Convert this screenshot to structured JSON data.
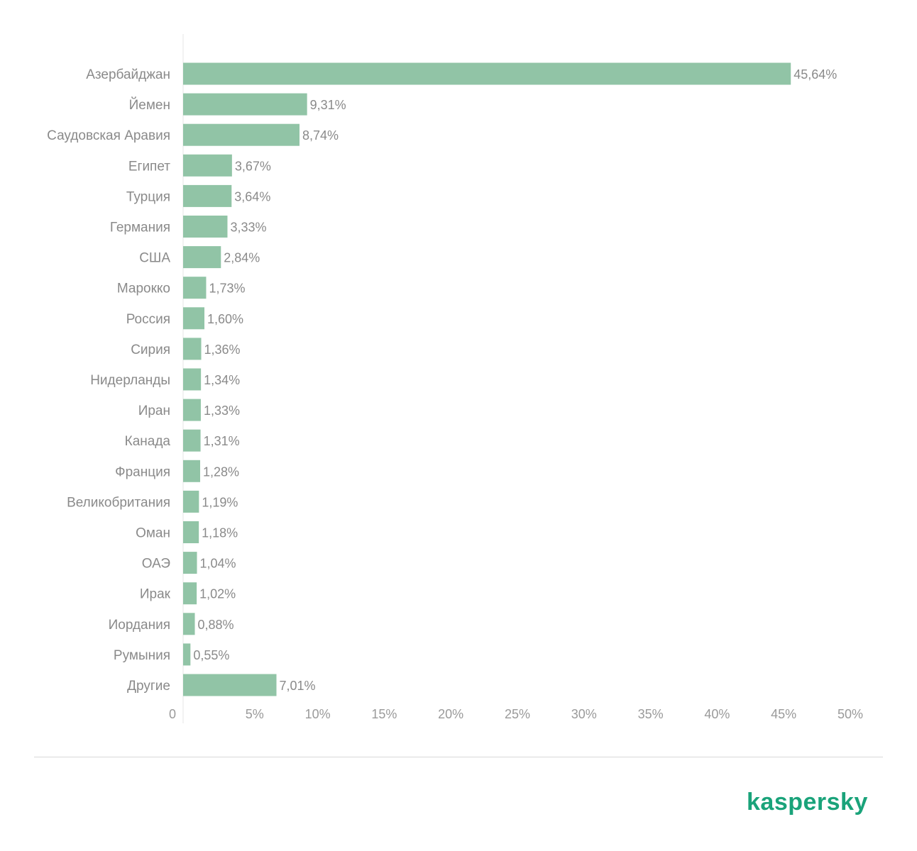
{
  "chart_data": {
    "type": "bar",
    "orientation": "horizontal",
    "categories": [
      "Азербайджан",
      "Йемен",
      "Саудовская Аравия",
      "Египет",
      "Турция",
      "Германия",
      "США",
      "Марокко",
      "Россия",
      "Сирия",
      "Нидерланды",
      "Иран",
      "Канада",
      "Франция",
      "Великобритания",
      "Оман",
      "ОАЭ",
      "Ирак",
      "Иордания",
      "Румыния",
      "Другие"
    ],
    "values": [
      45.64,
      9.31,
      8.74,
      3.67,
      3.64,
      3.33,
      2.84,
      1.73,
      1.6,
      1.36,
      1.34,
      1.33,
      1.31,
      1.28,
      1.19,
      1.18,
      1.04,
      1.02,
      0.88,
      0.55,
      7.01
    ],
    "value_labels": [
      "45,64%",
      "9,31%",
      "8,74%",
      "3,67%",
      "3,64%",
      "3,33%",
      "2,84%",
      "1,73%",
      "1,60%",
      "1,36%",
      "1,34%",
      "1,33%",
      "1,31%",
      "1,28%",
      "1,19%",
      "1,18%",
      "1,04%",
      "1,02%",
      "0,88%",
      "0,55%",
      "7,01%"
    ],
    "xlim": [
      0,
      50
    ],
    "x_ticks": [
      "0",
      "5%",
      "10%",
      "15%",
      "20%",
      "25%",
      "30%",
      "35%",
      "40%",
      "45%",
      "50%"
    ],
    "bar_color": "#91c4a6",
    "grid": false,
    "legend": "none"
  },
  "brand": {
    "logo_text": "kaspersky",
    "logo_color": "#1aa37a"
  }
}
